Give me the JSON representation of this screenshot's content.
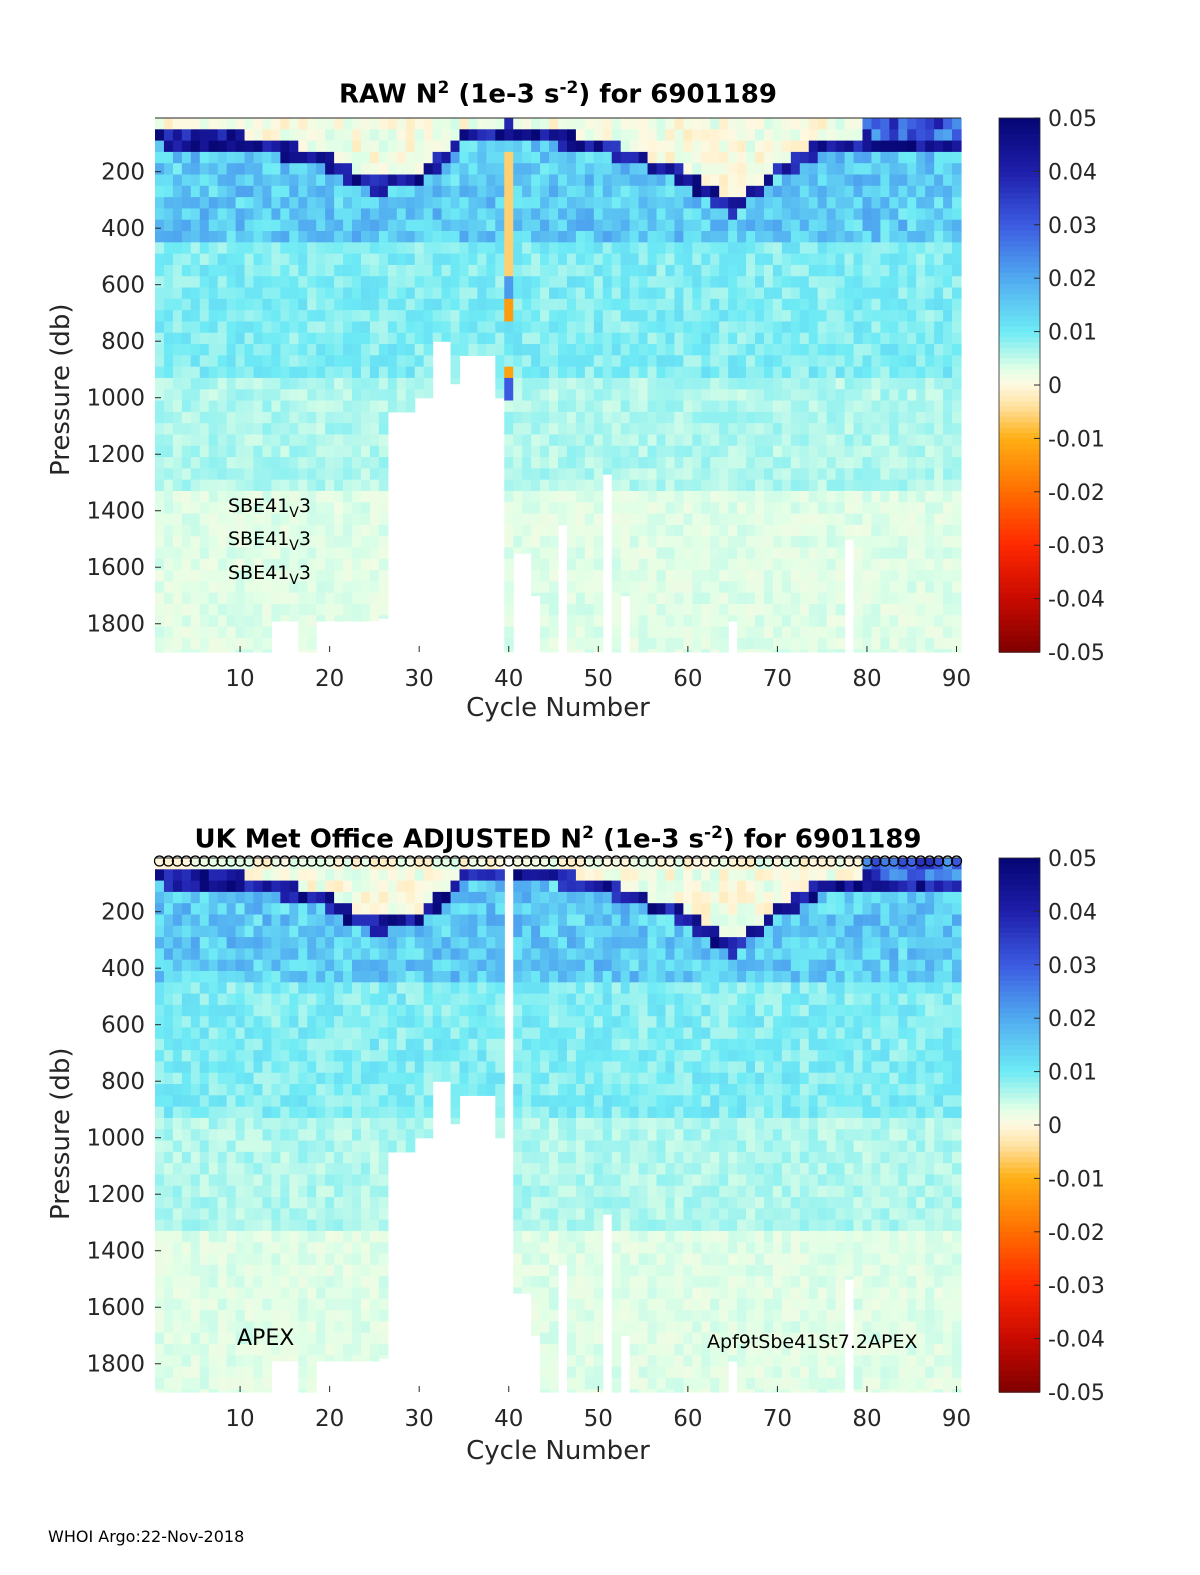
{
  "chart_data": [
    {
      "type": "heatmap",
      "title_prefix": "RAW N",
      "title_units": "(1e-3 s",
      "title_suffix": ") for 6901189",
      "xlabel": "Cycle Number",
      "ylabel": "Pressure (db)",
      "xlim": [
        1,
        90
      ],
      "ylim": [
        1900,
        10
      ],
      "x_ticks": [
        10,
        20,
        30,
        40,
        50,
        60,
        70,
        80,
        90
      ],
      "y_ticks": [
        200,
        400,
        600,
        800,
        1000,
        1200,
        1400,
        1600,
        1800
      ],
      "colorbar": {
        "min": -0.05,
        "max": 0.05,
        "ticks": [
          "0.05",
          "0.04",
          "0.03",
          "0.02",
          "0.01",
          "0",
          "-0.01",
          "-0.02",
          "-0.03",
          "-0.04",
          "-0.05"
        ]
      },
      "annotations": [
        "SBE41",
        "V",
        "3"
      ],
      "max_pressure_by_cycle_note": "white gaps = no data",
      "mixed_layer_depth_by_cycle": [
        {
          "cycle": 1,
          "pressure": 60
        },
        {
          "cycle": 10,
          "pressure": 70
        },
        {
          "cycle": 16,
          "pressure": 110
        },
        {
          "cycle": 20,
          "pressure": 150
        },
        {
          "cycle": 25,
          "pressure": 230
        },
        {
          "cycle": 30,
          "pressure": 200
        },
        {
          "cycle": 35,
          "pressure": 60
        },
        {
          "cycle": 40,
          "pressure": 30
        },
        {
          "cycle": 45,
          "pressure": 60
        },
        {
          "cycle": 50,
          "pressure": 80
        },
        {
          "cycle": 55,
          "pressure": 140
        },
        {
          "cycle": 60,
          "pressure": 200
        },
        {
          "cycle": 65,
          "pressure": 310
        },
        {
          "cycle": 70,
          "pressure": 180
        },
        {
          "cycle": 75,
          "pressure": 90
        },
        {
          "cycle": 80,
          "pressure": 70
        },
        {
          "cycle": 85,
          "pressure": 80
        },
        {
          "cycle": 90,
          "pressure": 100
        }
      ]
    },
    {
      "type": "heatmap",
      "title_prefix": "UK Met Office  ADJUSTED N",
      "title_units": "(1e-3 s",
      "title_suffix": ") for 6901189",
      "xlabel": "Cycle Number",
      "ylabel": "Pressure (db)",
      "xlim": [
        1,
        90
      ],
      "ylim": [
        1900,
        10
      ],
      "x_ticks": [
        10,
        20,
        30,
        40,
        50,
        60,
        70,
        80,
        90
      ],
      "y_ticks": [
        200,
        400,
        600,
        800,
        1000,
        1200,
        1400,
        1600,
        1800
      ],
      "colorbar": {
        "min": -0.05,
        "max": 0.05,
        "ticks": [
          "0.05",
          "0.04",
          "0.03",
          "0.02",
          "0.01",
          "0",
          "-0.01",
          "-0.02",
          "-0.03",
          "-0.04",
          "-0.05"
        ]
      },
      "annotations_left": "APEX",
      "annotations_right": "Apf9tSbe41St7.2APEX",
      "markers": "open circles at top of every cycle (QC flags)"
    }
  ],
  "sup": {
    "two": "2",
    "neg_two": "-2"
  },
  "footer": "WHOI Argo:22-Nov-2018"
}
